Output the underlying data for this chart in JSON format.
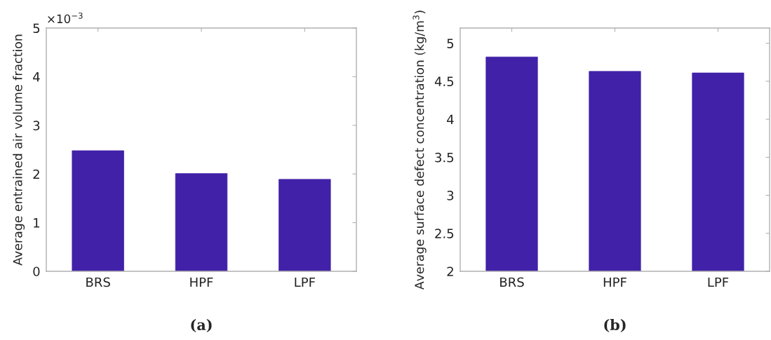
{
  "chart_data": [
    {
      "type": "bar",
      "ylabel": "Average entrained air volume fraction",
      "categories": [
        "BRS",
        "HPF",
        "LPF"
      ],
      "values": [
        2.48,
        2.01,
        1.89
      ],
      "color": "#4121a8",
      "ylim": [
        0,
        5
      ],
      "yticks": [
        0,
        1,
        2,
        3,
        4,
        5
      ],
      "grid": false,
      "annotations": [
        "×10$^{−3}$",
        "(a)"
      ]
    },
    {
      "type": "bar",
      "ylabel": "Average surface defect concentration (kg/m$^{3}$)",
      "categories": [
        "BRS",
        "HPF",
        "LPF"
      ],
      "values": [
        4.82,
        4.63,
        4.61
      ],
      "color": "#4121a8",
      "ylim": [
        2,
        5.2
      ],
      "yticks": [
        2,
        2.5,
        3,
        3.5,
        4,
        4.5,
        5
      ],
      "grid": false,
      "annotations": [
        "(b)"
      ]
    }
  ]
}
